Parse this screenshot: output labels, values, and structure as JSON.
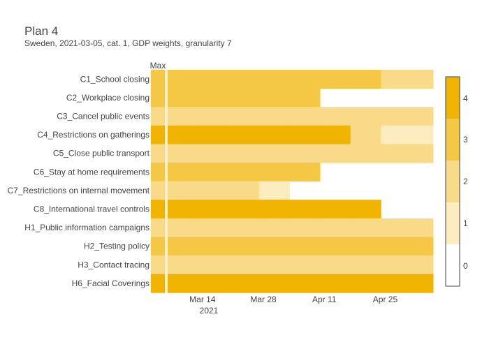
{
  "chart_data": {
    "type": "heatmap",
    "title": "Plan 4",
    "subtitle": "Sweden, 2021-03-05, cat. 1, GDP weights, granularity 7",
    "max_label": "Max",
    "x_ticks": [
      "Mar 14",
      "Mar 28",
      "Apr 11",
      "Apr 25"
    ],
    "x_year_label": "2021",
    "colorbar_ticks": [
      "4",
      "3",
      "2",
      "1",
      "0"
    ],
    "colorbar_range": [
      0,
      4
    ],
    "colors": {
      "0": "#ffffff",
      "1": "#fcecc0",
      "2": "#f8da88",
      "3": "#f4c845",
      "4": "#f0b400",
      "divider": "#fcefc8"
    },
    "week_starts": [
      "2021-03-06",
      "2021-03-13",
      "2021-03-20",
      "2021-03-27",
      "2021-04-03",
      "2021-04-10",
      "2021-04-17",
      "2021-04-24",
      "2021-04-30"
    ],
    "rows": [
      {
        "label": "C1_School closing",
        "max": 3,
        "values": [
          3,
          3,
          3,
          3,
          3,
          3,
          3,
          2,
          2
        ]
      },
      {
        "label": "C2_Workplace closing",
        "max": 3,
        "values": [
          3,
          3,
          3,
          3,
          3,
          null,
          null,
          null,
          null
        ]
      },
      {
        "label": "C3_Cancel public events",
        "max": 2,
        "values": [
          2,
          2,
          2,
          2,
          2,
          2,
          2,
          2,
          2
        ]
      },
      {
        "label": "C4_Restrictions on gatherings",
        "max": 4,
        "values": [
          4,
          4,
          4,
          4,
          4,
          4,
          2,
          1,
          1
        ]
      },
      {
        "label": "C5_Close public transport",
        "max": 2,
        "values": [
          2,
          2,
          2,
          2,
          2,
          2,
          2,
          2,
          2
        ]
      },
      {
        "label": "C6_Stay at home requirements",
        "max": 3,
        "values": [
          3,
          3,
          3,
          3,
          3,
          null,
          null,
          null,
          null
        ]
      },
      {
        "label": "C7_Restrictions on internal movement",
        "max": 2,
        "values": [
          2,
          2,
          2,
          1,
          null,
          null,
          null,
          null,
          null
        ]
      },
      {
        "label": "C8_International travel controls",
        "max": 4,
        "values": [
          4,
          4,
          4,
          4,
          4,
          4,
          4,
          null,
          null
        ]
      },
      {
        "label": "H1_Public information campaigns",
        "max": 2,
        "values": [
          2,
          2,
          2,
          2,
          2,
          2,
          2,
          2,
          2
        ]
      },
      {
        "label": "H2_Testing policy",
        "max": 3,
        "values": [
          3,
          3,
          3,
          3,
          3,
          3,
          3,
          3,
          3
        ]
      },
      {
        "label": "H3_Contact tracing",
        "max": 2,
        "values": [
          2,
          2,
          2,
          2,
          2,
          2,
          2,
          2,
          2
        ]
      },
      {
        "label": "H6_Facial Coverings",
        "max": 4,
        "values": [
          4,
          4,
          4,
          4,
          4,
          4,
          4,
          4,
          4
        ]
      }
    ]
  }
}
